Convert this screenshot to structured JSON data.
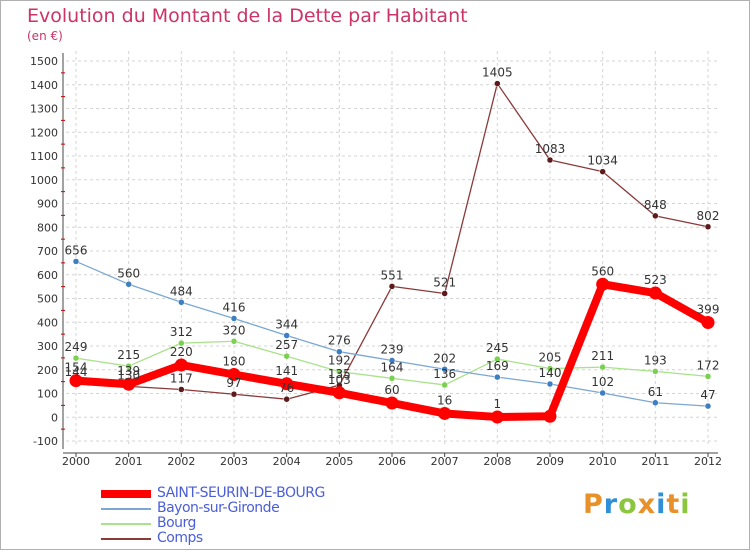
{
  "title": "Evolution du Montant de la Dette par Habitant",
  "unit_label": "(en €)",
  "brand": {
    "text": "Proxiti",
    "letter_colors": [
      "#e8912b",
      "#2f8fd8",
      "#8cc63f",
      "#e8912b",
      "#2f8fd8",
      "#e8912b",
      "#8cc63f"
    ]
  },
  "chart_data": {
    "type": "line",
    "x": [
      "2000",
      "2001",
      "2002",
      "2003",
      "2004",
      "2005",
      "2006",
      "2007",
      "2008",
      "2009",
      "2010",
      "2011",
      "2012"
    ],
    "ylim": [
      -100,
      1500
    ],
    "yticks": [
      "-100",
      "0",
      "100",
      "200",
      "300",
      "400",
      "500",
      "600",
      "700",
      "800",
      "900",
      "1000",
      "1100",
      "1200",
      "1300",
      "1400",
      "1500"
    ],
    "grid": true,
    "legend_position": "bottom-left",
    "series": [
      {
        "name": "SAINT-SEURIN-DE-BOURG",
        "color": "#ff0000",
        "marker_color": "#ff0000",
        "emphasis": true,
        "values": [
          154,
          139,
          220,
          180,
          141,
          103,
          60,
          16,
          1,
          4,
          560,
          523,
          399
        ],
        "labels": [
          "154",
          "139",
          "220",
          "180",
          "141",
          "103",
          "60",
          "16",
          "1",
          "",
          "560",
          "523",
          "399"
        ]
      },
      {
        "name": "Bayon-sur-Gironde",
        "color": "#7ba7d4",
        "marker_color": "#3d7fc1",
        "emphasis": false,
        "values": [
          656,
          560,
          484,
          416,
          344,
          276,
          239,
          202,
          169,
          140,
          102,
          61,
          47
        ],
        "labels": [
          "656",
          "560",
          "484",
          "416",
          "344",
          "276",
          "239",
          "202",
          "169",
          "140",
          "102",
          "61",
          "47"
        ]
      },
      {
        "name": "Bourg",
        "color": "#a8e28a",
        "marker_color": "#7bd050",
        "emphasis": false,
        "values": [
          249,
          215,
          312,
          320,
          257,
          192,
          164,
          136,
          245,
          205,
          211,
          193,
          172
        ],
        "labels": [
          "249",
          "215",
          "312",
          "320",
          "257",
          "192",
          "164",
          "136",
          "245",
          "205",
          "211",
          "193",
          "172"
        ]
      },
      {
        "name": "Comps",
        "color": "#8b3a3a",
        "marker_color": "#5c1a1a",
        "emphasis": false,
        "values": [
          144,
          130,
          117,
          97,
          76,
          135,
          551,
          521,
          1405,
          1083,
          1034,
          848,
          802
        ],
        "labels": [
          "144",
          "130",
          "117",
          "97",
          "76",
          "135",
          "551",
          "521",
          "1405",
          "1083",
          "1034",
          "848",
          "802"
        ]
      }
    ]
  }
}
